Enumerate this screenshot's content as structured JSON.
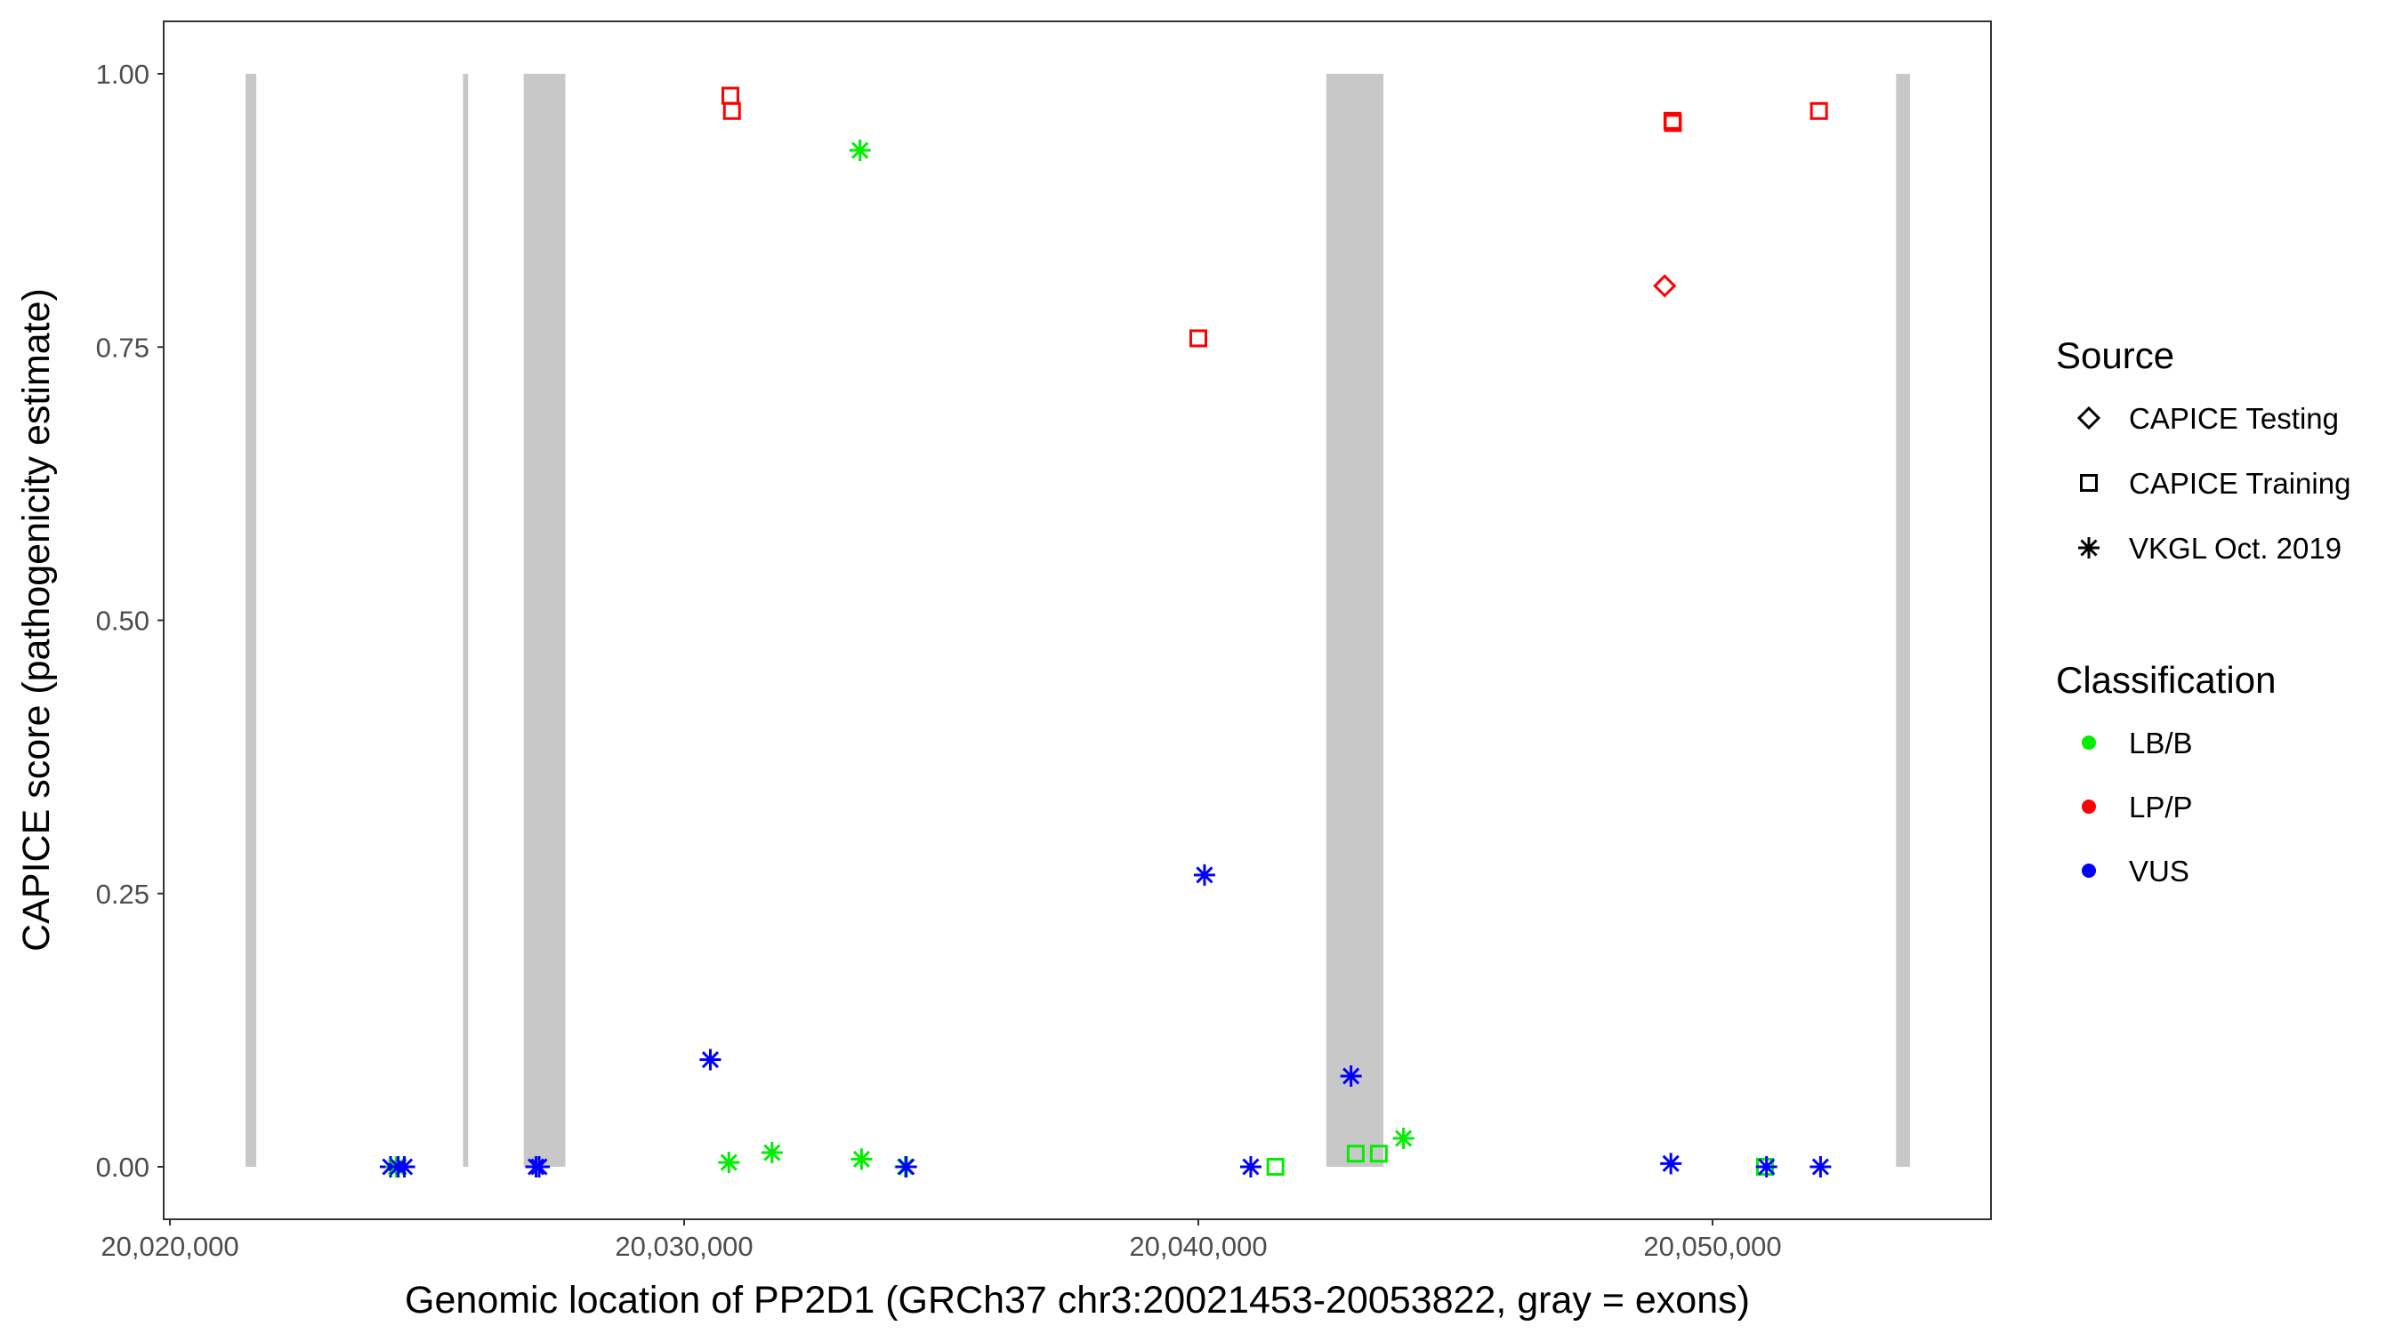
{
  "chart_data": {
    "type": "scatter",
    "xlabel": "Genomic location of PP2D1 (GRCh37 chr3:20021453-20053822, gray = exons)",
    "ylabel": "CAPICE score (pathogenicity estimate)",
    "xlim": [
      20019700,
      20055400
    ],
    "ylim": [
      -0.05,
      1.05
    ],
    "x_ticks": [
      20020000,
      20030000,
      20040000,
      20050000
    ],
    "x_tick_labels": [
      "20,020,000",
      "20,030,000",
      "20,040,000",
      "20,050,000"
    ],
    "y_ticks": [
      0,
      0.25,
      0.5,
      0.75,
      1.0
    ],
    "y_tick_labels": [
      "0.00",
      "0.25",
      "0.50",
      "0.75",
      "1.00"
    ],
    "grid": false,
    "exons": [
      [
        20021470,
        20021680
      ],
      [
        20025700,
        20025800
      ],
      [
        20026880,
        20027690
      ],
      [
        20042490,
        20043600
      ],
      [
        20053570,
        20053840
      ]
    ],
    "exon_color": "#c8c8c8",
    "legend_placement": "right",
    "legend": {
      "source": {
        "title": "Source",
        "items": [
          {
            "label": "CAPICE Testing",
            "shape": "diamond"
          },
          {
            "label": "CAPICE Training",
            "shape": "square"
          },
          {
            "label": "VKGL Oct. 2019",
            "shape": "asterisk"
          }
        ]
      },
      "classification": {
        "title": "Classification",
        "items": [
          {
            "label": "LB/B",
            "color": "#00ee00"
          },
          {
            "label": "LP/P",
            "color": "#ff0000"
          },
          {
            "label": "VUS",
            "color": "#0000ff"
          }
        ]
      }
    },
    "points": [
      {
        "x": 20024290,
        "y": 0.0,
        "source": "VKGL Oct. 2019",
        "class": "VUS"
      },
      {
        "x": 20024400,
        "y": 0.0,
        "source": "VKGL Oct. 2019",
        "class": "LB/B"
      },
      {
        "x": 20024440,
        "y": 0.0,
        "source": "VKGL Oct. 2019",
        "class": "VUS"
      },
      {
        "x": 20024560,
        "y": 0.0,
        "source": "VKGL Oct. 2019",
        "class": "VUS"
      },
      {
        "x": 20027120,
        "y": 0.0,
        "source": "VKGL Oct. 2019",
        "class": "VUS"
      },
      {
        "x": 20027180,
        "y": 0.0,
        "source": "VKGL Oct. 2019",
        "class": "VUS"
      },
      {
        "x": 20030510,
        "y": 0.098,
        "source": "VKGL Oct. 2019",
        "class": "VUS"
      },
      {
        "x": 20030870,
        "y": 0.004,
        "source": "VKGL Oct. 2019",
        "class": "LB/B"
      },
      {
        "x": 20030900,
        "y": 0.98,
        "source": "CAPICE Training",
        "class": "LP/P"
      },
      {
        "x": 20030930,
        "y": 0.966,
        "source": "CAPICE Training",
        "class": "LP/P"
      },
      {
        "x": 20031710,
        "y": 0.013,
        "source": "VKGL Oct. 2019",
        "class": "LB/B"
      },
      {
        "x": 20033420,
        "y": 0.93,
        "source": "VKGL Oct. 2019",
        "class": "LB/B"
      },
      {
        "x": 20033450,
        "y": 0.007,
        "source": "VKGL Oct. 2019",
        "class": "LB/B"
      },
      {
        "x": 20034300,
        "y": 0.0,
        "source": "VKGL Oct. 2019",
        "class": "LB/B"
      },
      {
        "x": 20034320,
        "y": 0.0,
        "source": "VKGL Oct. 2019",
        "class": "VUS"
      },
      {
        "x": 20040000,
        "y": 0.758,
        "source": "CAPICE Training",
        "class": "LP/P"
      },
      {
        "x": 20040120,
        "y": 0.267,
        "source": "VKGL Oct. 2019",
        "class": "VUS"
      },
      {
        "x": 20041020,
        "y": 0.0,
        "source": "VKGL Oct. 2019",
        "class": "VUS"
      },
      {
        "x": 20041500,
        "y": 0.0,
        "source": "CAPICE Training",
        "class": "LB/B"
      },
      {
        "x": 20042970,
        "y": 0.083,
        "source": "VKGL Oct. 2019",
        "class": "VUS"
      },
      {
        "x": 20043060,
        "y": 0.012,
        "source": "CAPICE Training",
        "class": "LB/B"
      },
      {
        "x": 20043510,
        "y": 0.012,
        "source": "CAPICE Training",
        "class": "LB/B"
      },
      {
        "x": 20043990,
        "y": 0.026,
        "source": "VKGL Oct. 2019",
        "class": "LB/B"
      },
      {
        "x": 20049070,
        "y": 0.806,
        "source": "CAPICE Testing",
        "class": "LP/P"
      },
      {
        "x": 20049190,
        "y": 0.003,
        "source": "VKGL Oct. 2019",
        "class": "VUS"
      },
      {
        "x": 20049220,
        "y": 0.957,
        "source": "CAPICE Training",
        "class": "LP/P"
      },
      {
        "x": 20049230,
        "y": 0.955,
        "source": "CAPICE Training",
        "class": "LP/P"
      },
      {
        "x": 20051020,
        "y": 0.0,
        "source": "CAPICE Training",
        "class": "LB/B"
      },
      {
        "x": 20051050,
        "y": 0.0,
        "source": "VKGL Oct. 2019",
        "class": "VUS"
      },
      {
        "x": 20052070,
        "y": 0.966,
        "source": "CAPICE Training",
        "class": "LP/P"
      },
      {
        "x": 20052100,
        "y": 0.0,
        "source": "VKGL Oct. 2019",
        "class": "VUS"
      }
    ]
  }
}
